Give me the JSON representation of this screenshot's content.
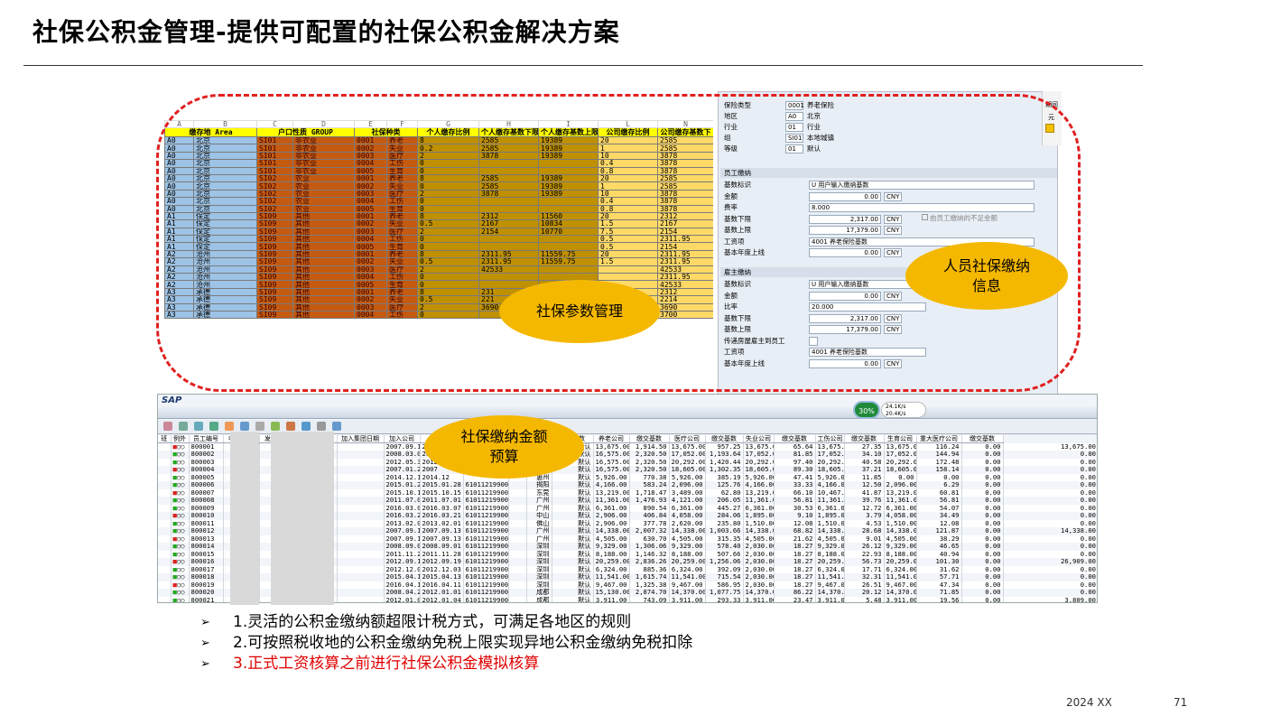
{
  "title": "社保公积金管理-提供可配置的社保公积金解决方案",
  "bubbles": {
    "params": "社保参数管理",
    "personal": "人员社保缴纳\n信息",
    "budget": "社保缴纳金额\n预算"
  },
  "excel": {
    "letters": [
      "A",
      "B",
      "C",
      "D",
      "E",
      "F",
      "G",
      "H",
      "I",
      "J",
      "L",
      "N"
    ],
    "headers": [
      "缴存地\nArea",
      "户口性质\nGROUP",
      "社保种类",
      "",
      "个人缴存比例",
      "个人缴存基数下限",
      "个人缴存基数上限",
      "",
      "公司缴存比例",
      "公司缴存基数下"
    ],
    "rows": [
      [
        "A0",
        "北京",
        "SI01",
        "非农业",
        "0001",
        "养老",
        "8",
        "2585",
        "19389",
        "20",
        "2585"
      ],
      [
        "A0",
        "北京",
        "SI01",
        "非农业",
        "0002",
        "失业",
        "0.2",
        "2585",
        "19389",
        "1",
        "2585"
      ],
      [
        "A0",
        "北京",
        "SI01",
        "非农业",
        "0003",
        "医疗",
        "2",
        "3878",
        "19389",
        "10",
        "3878"
      ],
      [
        "A0",
        "北京",
        "SI01",
        "非农业",
        "0004",
        "工伤",
        "0",
        "",
        "",
        "0.4",
        "3878"
      ],
      [
        "A0",
        "北京",
        "SI01",
        "非农业",
        "0005",
        "生育",
        "0",
        "",
        "",
        "0.8",
        "3878"
      ],
      [
        "A0",
        "北京",
        "SI02",
        "农业",
        "0001",
        "养老",
        "8",
        "2585",
        "19389",
        "20",
        "2585"
      ],
      [
        "A0",
        "北京",
        "SI02",
        "农业",
        "0002",
        "失业",
        "0",
        "2585",
        "19389",
        "1",
        "2585"
      ],
      [
        "A0",
        "北京",
        "SI02",
        "农业",
        "0003",
        "医疗",
        "2",
        "3878",
        "19389",
        "10",
        "3878"
      ],
      [
        "A0",
        "北京",
        "SI02",
        "农业",
        "0004",
        "工伤",
        "0",
        "",
        "",
        "0.4",
        "3878"
      ],
      [
        "A0",
        "北京",
        "SI02",
        "农业",
        "0005",
        "生育",
        "0",
        "",
        "",
        "0.8",
        "3878"
      ],
      [
        "A1",
        "保定",
        "SI09",
        "其他",
        "0001",
        "养老",
        "8",
        "2312",
        "11560",
        "20",
        "2312"
      ],
      [
        "A1",
        "保定",
        "SI09",
        "其他",
        "0002",
        "失业",
        "0.5",
        "2167",
        "10834",
        "1.5",
        "2167"
      ],
      [
        "A1",
        "保定",
        "SI09",
        "其他",
        "0003",
        "医疗",
        "2",
        "2154",
        "10770",
        "7.5",
        "2154"
      ],
      [
        "A1",
        "保定",
        "SI09",
        "其他",
        "0004",
        "工伤",
        "0",
        "",
        "",
        "0.5",
        "2311.95"
      ],
      [
        "A1",
        "保定",
        "SI09",
        "其他",
        "0005",
        "生育",
        "0",
        "",
        "",
        "0.5",
        "2154"
      ],
      [
        "A2",
        "沧州",
        "SI09",
        "其他",
        "0001",
        "养老",
        "8",
        "2311.95",
        "11559.75",
        "20",
        "2311.95"
      ],
      [
        "A2",
        "沧州",
        "SI09",
        "其他",
        "0002",
        "失业",
        "0.5",
        "2311.95",
        "11559.75",
        "1.5",
        "2311.95"
      ],
      [
        "A2",
        "沧州",
        "SI09",
        "其他",
        "0003",
        "医疗",
        "2",
        "42533",
        "",
        "",
        "42533"
      ],
      [
        "A2",
        "沧州",
        "SI09",
        "其他",
        "0004",
        "工伤",
        "0",
        "",
        "",
        "",
        "2311.95"
      ],
      [
        "A2",
        "沧州",
        "SI09",
        "其他",
        "0005",
        "生育",
        "0",
        "",
        "",
        "",
        "42533"
      ],
      [
        "A3",
        "承德",
        "SI09",
        "其他",
        "0001",
        "养老",
        "8",
        "231",
        "",
        "",
        "2312"
      ],
      [
        "A3",
        "承德",
        "SI09",
        "其他",
        "0002",
        "失业",
        "0.5",
        "221",
        "",
        "",
        "2214"
      ],
      [
        "A3",
        "承德",
        "SI09",
        "其他",
        "0003",
        "医疗",
        "2",
        "3690",
        "",
        "",
        "3690"
      ],
      [
        "A3",
        "承德",
        "SI09",
        "其他",
        "0004",
        "工伤",
        "0",
        "",
        "",
        "",
        "3700"
      ]
    ]
  },
  "sapTop": {
    "fields": [
      {
        "label": "保险类型",
        "code": "0001",
        "text": "养老保险"
      },
      {
        "label": "地区",
        "code": "A0",
        "text": "北京"
      },
      {
        "label": "行业",
        "code": "01",
        "text": "行业"
      },
      {
        "label": "组",
        "code": "SI01",
        "text": "本地城镇"
      },
      {
        "label": "等级",
        "code": "01",
        "text": "默认"
      }
    ],
    "emp_section": "员工缴纳",
    "emp": [
      {
        "label": "基数标识",
        "val": "U 用户输入缴纳基数"
      },
      {
        "label": "金额",
        "val": "0.00",
        "cur": "CNY"
      },
      {
        "label": "费率",
        "val": "8.000"
      },
      {
        "label": "基数下限",
        "val": "2,317.00",
        "cur": "CNY"
      },
      {
        "label": "基数上限",
        "val": "17,379.00",
        "cur": "CNY"
      },
      {
        "label": "工资项",
        "val": "4001 养老保险基数"
      },
      {
        "label": "基本年度上线",
        "val": "0.00",
        "cur": "CNY"
      }
    ],
    "emp_check": "由员工缴纳的不足金额",
    "er_section": "雇主缴纳",
    "er": [
      {
        "label": "基数标识",
        "val": "U 用户输入缴纳基数"
      },
      {
        "label": "金额",
        "val": "0.00",
        "cur": "CNY"
      },
      {
        "label": "比率",
        "val": "20.000"
      },
      {
        "label": "基数下限",
        "val": "2,317.00",
        "cur": "CNY"
      },
      {
        "label": "基数上限",
        "val": "17,379.00",
        "cur": "CNY"
      },
      {
        "label": "传递房屋雇主到员工",
        "val": ""
      },
      {
        "label": "工资项",
        "val": "4001 养老保险基数"
      },
      {
        "label": "基本年度上线",
        "val": "0.00",
        "cur": "CNY"
      }
    ],
    "side": [
      "期间",
      "元"
    ]
  },
  "sap": {
    "logo": "SAP",
    "percent": "30%",
    "speed_up": "24.1K/s",
    "speed_down": "20.4K/s",
    "columns": [
      "班",
      "例外",
      "员工编号",
      "中文姓名",
      "发票抬头",
      "",
      "加入集团日期",
      "加入公司",
      "",
      "",
      "社保缴纳地区",
      "供应商",
      "缴交基数",
      "养老公司",
      "缴交基数",
      "医疗公司",
      "缴交基数",
      "失业公司",
      "缴交基数",
      "工伤公司",
      "缴交基数",
      "生育公司",
      "重大医疗公司",
      "缴交基数"
    ],
    "rows": [
      [
        "800001",
        "Co.,Ltd.",
        "2007.09.13",
        "2007",
        "",
        "",
        "默认",
        "13,675.00",
        "1,914.50",
        "13,675.00",
        "957.25",
        "13,675.00",
        "65.64",
        "13,675.00",
        "27.35",
        "13,675.00",
        "116.24",
        "0.00",
        "13,675.00"
      ],
      [
        "800002",
        "Co.,Ltd.",
        "2008.03.06",
        "2007",
        "",
        "",
        "默认",
        "16,575.00",
        "2,320.50",
        "17,052.00",
        "1,193.64",
        "17,052.00",
        "81.85",
        "17,052.00",
        "34.10",
        "17,052.00",
        "144.94",
        "0.00",
        "0.00"
      ],
      [
        "800003",
        "Co.,Ltd.",
        "2012.05.30",
        "2012",
        "",
        "",
        "默认",
        "16,575.00",
        "2,320.50",
        "20,292.00",
        "1,420.44",
        "20,292.00",
        "97.40",
        "20,292.00",
        "40.58",
        "20,292.00",
        "172.48",
        "0.00",
        "0.00"
      ],
      [
        "800004",
        "Co.,Ltd.",
        "2007.01.29",
        "2007",
        "",
        "",
        "默认",
        "16,575.00",
        "2,320.50",
        "18,605.00",
        "1,302.35",
        "18,605.00",
        "89.30",
        "18,605.00",
        "37.21",
        "18,605.00",
        "158.14",
        "0.00",
        "0.00"
      ],
      [
        "800005",
        "Co.,Ltd.",
        "2014.12.17",
        "2014.12",
        "",
        "惠州",
        "默认",
        "5,926.00",
        "770.38",
        "5,926.00",
        "385.19",
        "5,926.00",
        "47.41",
        "5,926.00",
        "11.85",
        "0.00",
        "0.00",
        "0.00",
        "0.00"
      ],
      [
        "800006",
        "Co.,Ltd.",
        "2015.01.28",
        "2015.01.28",
        "61011219900101000006",
        "揭阳",
        "默认",
        "4,166.00",
        "583.24",
        "2,096.00",
        "125.76",
        "4,166.00",
        "33.33",
        "4,166.00",
        "12.50",
        "2,096.00",
        "6.29",
        "0.00",
        "0.00"
      ],
      [
        "800007",
        "Co.,Ltd.",
        "2015.10.15",
        "2015.10.15",
        "61011219900101000007",
        "东莞",
        "默认",
        "13,219.00",
        "1,718.47",
        "3,489.00",
        "62.80",
        "13,219.00",
        "66.10",
        "10,467.00",
        "41.87",
        "13,219.00",
        "60.81",
        "0.00",
        "0.00"
      ],
      [
        "800008",
        "Co.,Ltd.",
        "2011.07.01",
        "2011.07.01",
        "61011219900101000008",
        "广州",
        "默认",
        "11,361.00",
        "1,476.93",
        "4,121.00",
        "206.05",
        "11,361.00",
        "56.81",
        "11,361.00",
        "39.76",
        "11,361.00",
        "56.81",
        "0.00",
        "0.00"
      ],
      [
        "800009",
        "Co.,Ltd.",
        "2016.03.07",
        "2016.03.07",
        "61011219900101000009",
        "广州",
        "默认",
        "6,361.00",
        "890.54",
        "6,361.00",
        "445.27",
        "6,361.00",
        "30.53",
        "6,361.00",
        "12.72",
        "6,361.00",
        "54.07",
        "0.00",
        "0.00"
      ],
      [
        "800010",
        "Co.,Ltd.",
        "2016.03.21",
        "2016.03.21",
        "61011219900101000010",
        "中山",
        "默认",
        "2,906.00",
        "406.84",
        "4,058.00",
        "284.06",
        "1,895.00",
        "9.10",
        "1,895.00",
        "3.79",
        "4,058.00",
        "34.49",
        "0.00",
        "0.00"
      ],
      [
        "800011",
        "Co.,Ltd.",
        "2013.02.01",
        "2013.02.01",
        "61011219900101000011",
        "佛山",
        "默认",
        "2,906.00",
        "377.78",
        "2,620.00",
        "235.80",
        "1,510.00",
        "12.08",
        "1,510.00",
        "4.53",
        "1,510.00",
        "12.08",
        "0.00",
        "0.00"
      ],
      [
        "800012",
        "Co.,Ltd.",
        "2007.09.13",
        "2007.09.13",
        "61011219900101000012",
        "广州",
        "默认",
        "14,338.00",
        "2,007.32",
        "14,338.00",
        "1,003.66",
        "14,338.00",
        "68.82",
        "14,338.00",
        "28.68",
        "14,338.00",
        "121.87",
        "0.00",
        "14,338.00"
      ],
      [
        "800013",
        "Co.,Ltd.",
        "2007.09.13",
        "2007.09.13",
        "61011219900101000013",
        "广州",
        "默认",
        "4,505.00",
        "630.70",
        "4,505.00",
        "315.35",
        "4,505.00",
        "21.62",
        "4,505.00",
        "9.01",
        "4,505.00",
        "38.29",
        "0.00",
        "0.00"
      ],
      [
        "800014",
        "Co.,Ltd.",
        "2008.09.01",
        "2008.09.01",
        "61011219900101000014",
        "深圳",
        "默认",
        "9,329.00",
        "1,306.06",
        "9,329.00",
        "578.40",
        "2,030.00",
        "18.27",
        "9,329.00",
        "26.12",
        "9,329.00",
        "46.65",
        "0.00",
        "0.00"
      ],
      [
        "800015",
        "Co.,Ltd.",
        "2011.11.28",
        "2011.11.28",
        "61011219900101000015",
        "深圳",
        "默认",
        "8,188.00",
        "1,146.32",
        "8,188.00",
        "507.66",
        "2,030.00",
        "18.27",
        "8,188.00",
        "22.93",
        "8,188.00",
        "40.94",
        "0.00",
        "0.00"
      ],
      [
        "800016",
        "Co.,Ltd.",
        "2012.09.19",
        "2012.09.19",
        "61011219900101000016",
        "深圳",
        "默认",
        "20,259.00",
        "2,836.26",
        "20,259.00",
        "1,256.06",
        "2,030.00",
        "18.27",
        "20,259.00",
        "56.73",
        "20,259.00",
        "101.30",
        "0.00",
        "26,909.00"
      ],
      [
        "800017",
        "Co.,Ltd.",
        "2012.12.03",
        "2012.12.03",
        "61011219900101000017",
        "深圳",
        "默认",
        "6,324.00",
        "885.36",
        "6,324.00",
        "392.09",
        "2,030.00",
        "18.27",
        "6,324.00",
        "17.71",
        "6,324.00",
        "31.62",
        "0.00",
        "0.00"
      ],
      [
        "800018",
        "Co.,Ltd.",
        "2015.04.13",
        "2015.04.13",
        "61011219900101000018",
        "深圳",
        "默认",
        "11,541.00",
        "1,615.74",
        "11,541.00",
        "715.54",
        "2,030.00",
        "18.27",
        "11,541.00",
        "32.31",
        "11,541.00",
        "57.71",
        "0.00",
        "0.00"
      ],
      [
        "800019",
        "Co.,Ltd.",
        "2016.04.11",
        "2016.04.11",
        "61011219900101000019",
        "深圳",
        "默认",
        "9,467.00",
        "1,325.38",
        "9,467.00",
        "586.95",
        "2,030.00",
        "18.27",
        "9,467.00",
        "26.51",
        "9,467.00",
        "47.34",
        "0.00",
        "0.00"
      ],
      [
        "800020",
        "Ltd",
        "2008.04.23",
        "2012.01.01",
        "61011219900101000020",
        "成都",
        "默认",
        "15,130.00",
        "2,874.70",
        "14,370.00",
        "1,077.75",
        "14,370.00",
        "86.22",
        "14,370.00",
        "20.12",
        "14,370.00",
        "71.85",
        "0.00",
        "0.00"
      ],
      [
        "800021",
        "Ltd",
        "2012.01.04",
        "2012.01.04",
        "61011219900101000021",
        "成都",
        "默认",
        "3,911.00",
        "743.09",
        "3,911.00",
        "293.33",
        "3,911.00",
        "23.47",
        "3,911.00",
        "5.48",
        "3,911.00",
        "19.56",
        "0.00",
        "3,809.00"
      ],
      [
        "800022",
        "Ltd",
        "2015.01.04",
        "2015.01.04",
        "61011219900101000022",
        "成都",
        "默认",
        "11,796.00",
        "2,241.24",
        "11,796.00",
        "884.70",
        "11,796.00",
        "70.78",
        "11,796.00",
        "16.51",
        "11,796.00",
        "58.98",
        "0.00",
        "0.00"
      ]
    ]
  },
  "bullets": [
    {
      "mark": "➢",
      "text": "1.灵活的公积金缴纳额超限计税方式，可满足各地区的规则",
      "color": ""
    },
    {
      "mark": "➢",
      "text": "2.可按照税收地的公积金缴纳免税上限实现异地公积金缴纳免税扣除",
      "color": ""
    },
    {
      "mark": "➢",
      "text": "3.正式工资核算之前进行社保公积金模拟核算",
      "color": "red"
    }
  ],
  "footer": {
    "date": "2024 XX",
    "page": "71"
  }
}
